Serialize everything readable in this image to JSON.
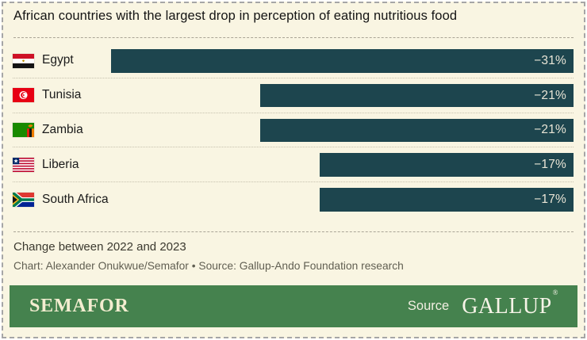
{
  "title": "African countries with the largest drop in perception of eating nutritious food",
  "chart": {
    "rows": [
      {
        "country": "Egypt",
        "value": -31,
        "value_label": "−31%"
      },
      {
        "country": "Tunisia",
        "value": -21,
        "value_label": "−21%"
      },
      {
        "country": "Zambia",
        "value": -21,
        "value_label": "−21%"
      },
      {
        "country": "Liberia",
        "value": -17,
        "value_label": "−17%"
      },
      {
        "country": "South Africa",
        "value": -17,
        "value_label": "−17%"
      }
    ]
  },
  "chart_data": {
    "type": "bar",
    "orientation": "horizontal",
    "title": "African countries with the largest drop in perception of eating nutritious food",
    "categories": [
      "Egypt",
      "Tunisia",
      "Zambia",
      "Liberia",
      "South Africa"
    ],
    "values": [
      -31,
      -21,
      -21,
      -17,
      -17
    ],
    "value_labels": [
      "−31%",
      "−21%",
      "−21%",
      "−17%",
      "−17%"
    ],
    "unit": "%",
    "xlim": [
      -31,
      0
    ],
    "grid": false,
    "legend": "none",
    "note": "Change between 2022 and 2023",
    "credit": "Chart: Alexander Onukwue/Semafor • Source: Gallup-Ando Foundation research",
    "bar_color": "#1d454e"
  },
  "notes": {
    "change": "Change between 2022 and 2023",
    "credit": "Chart: Alexander Onukwue/Semafor • Source: Gallup-Ando Foundation research"
  },
  "footer": {
    "brand": "SEMAFOR",
    "source_label": "Source",
    "source_brand": "GALLUP",
    "registered": "®"
  },
  "colors": {
    "card_background": "#f9f5e2",
    "bar": "#1d454e",
    "bar_text": "#e9e5d6",
    "footer_background": "#45824e",
    "footer_text": "#f3edd0"
  }
}
